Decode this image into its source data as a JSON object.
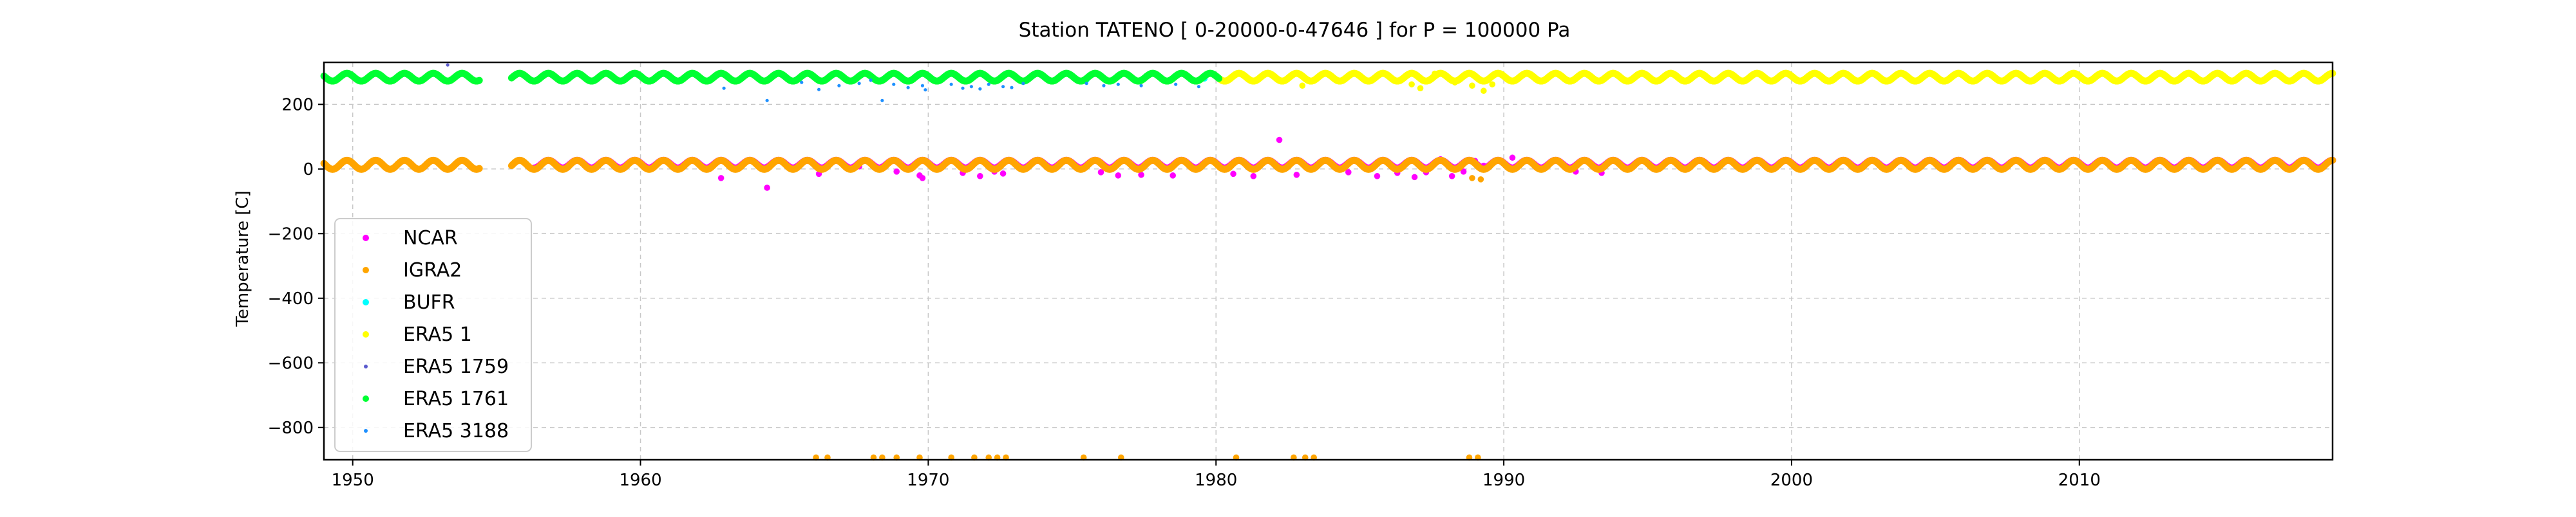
{
  "chart_data": {
    "type": "scatter",
    "title": "Station  TATENO [ 0-20000-0-47646 ]  for P = 100000 Pa",
    "xlabel": "",
    "ylabel": "Temperature [C]",
    "xlim": [
      1949.0,
      2018.8
    ],
    "ylim": [
      -900,
      330
    ],
    "x_ticks": [
      1950,
      1960,
      1970,
      1980,
      1990,
      2000,
      2010
    ],
    "x_tick_labels": [
      "1950",
      "1960",
      "1970",
      "1980",
      "1990",
      "2000",
      "2010"
    ],
    "y_ticks": [
      200,
      0,
      -200,
      -400,
      -600,
      -800
    ],
    "y_tick_labels": [
      "200",
      "0",
      "−200",
      "−400",
      "−600",
      "−800"
    ],
    "grid": true,
    "legend_position": "lower left",
    "series": [
      {
        "name": "NCAR",
        "color": "#ff00ff",
        "marker_size": "medium",
        "seasonal_band": {
          "x_start": 1956.3,
          "x_end": 2018.8,
          "center": 15,
          "amplitude": 12
        },
        "points": [
          [
            1962.8,
            -28
          ],
          [
            1964.4,
            -58
          ],
          [
            1966.2,
            -15
          ],
          [
            1967.6,
            8
          ],
          [
            1968.9,
            -8
          ],
          [
            1969.7,
            -20
          ],
          [
            1969.8,
            -28
          ],
          [
            1971.2,
            -12
          ],
          [
            1971.8,
            -22
          ],
          [
            1972.3,
            -8
          ],
          [
            1972.6,
            -14
          ],
          [
            1976.0,
            -10
          ],
          [
            1976.6,
            -20
          ],
          [
            1977.4,
            -18
          ],
          [
            1978.5,
            -20
          ],
          [
            1980.6,
            -15
          ],
          [
            1981.3,
            -22
          ],
          [
            1982.2,
            90
          ],
          [
            1982.8,
            -18
          ],
          [
            1984.6,
            -10
          ],
          [
            1985.6,
            -22
          ],
          [
            1986.3,
            -12
          ],
          [
            1986.9,
            -25
          ],
          [
            1987.3,
            -10
          ],
          [
            1987.8,
            30
          ],
          [
            1988.2,
            -22
          ],
          [
            1988.6,
            -8
          ],
          [
            1989.0,
            25
          ],
          [
            1989.3,
            10
          ],
          [
            1990.3,
            35
          ],
          [
            1992.5,
            -8
          ],
          [
            1993.4,
            -12
          ],
          [
            2016.4,
            2
          ]
        ]
      },
      {
        "name": "IGRA2",
        "color": "#ffa500",
        "marker_size": "medium",
        "seasonal_band": {
          "x_start": 1949.0,
          "x_end": 2018.8,
          "center": 13,
          "amplitude": 14
        },
        "gaps": [
          [
            1954.4,
            1955.5
          ]
        ],
        "points": [
          [
            1966.1,
            -893
          ],
          [
            1966.5,
            -893
          ],
          [
            1968.1,
            -893
          ],
          [
            1968.4,
            -893
          ],
          [
            1968.9,
            -893
          ],
          [
            1969.7,
            -893
          ],
          [
            1970.8,
            -893
          ],
          [
            1971.6,
            -893
          ],
          [
            1972.1,
            -893
          ],
          [
            1972.4,
            -893
          ],
          [
            1972.7,
            -893
          ],
          [
            1975.4,
            -893
          ],
          [
            1976.7,
            -893
          ],
          [
            1980.7,
            -893
          ],
          [
            1982.7,
            -893
          ],
          [
            1983.1,
            -893
          ],
          [
            1983.4,
            -893
          ],
          [
            1988.8,
            -893
          ],
          [
            1989.1,
            -893
          ],
          [
            1988.9,
            -28
          ],
          [
            1989.2,
            -32
          ]
        ]
      },
      {
        "name": "BUFR",
        "color": "#00ffff",
        "marker_size": "medium",
        "points": [
          [
            1975.5,
            276
          ],
          [
            1979.6,
            280
          ]
        ]
      },
      {
        "name": "ERA5 1",
        "color": "#ffff00",
        "marker_size": "medium",
        "seasonal_band": {
          "x_start": 1980.0,
          "x_end": 2018.8,
          "center": 284,
          "amplitude": 12
        },
        "points": [
          [
            1986.8,
            262
          ],
          [
            1987.1,
            250
          ],
          [
            1988.3,
            268
          ],
          [
            1988.9,
            258
          ],
          [
            1989.3,
            242
          ],
          [
            1989.6,
            262
          ],
          [
            1983.0,
            258
          ],
          [
            1987.6,
            295
          ]
        ]
      },
      {
        "name": "ERA5 1759",
        "color": "#5a5acd",
        "marker_size": "small",
        "seasonal_band": {
          "x_start": 1963.1,
          "x_end": 1964.4,
          "center": 284,
          "amplitude": 12
        },
        "points": [
          [
            1953.3,
            322
          ]
        ]
      },
      {
        "name": "ERA5 1761",
        "color": "#00ff33",
        "marker_size": "medium",
        "seasonal_band": {
          "x_start": 1949.0,
          "x_end": 1980.1,
          "center": 284,
          "amplitude": 12
        },
        "gaps": [
          [
            1954.4,
            1955.5
          ]
        ]
      },
      {
        "name": "ERA5 3188",
        "color": "#1e90ff",
        "marker_size": "small",
        "points": [
          [
            1962.9,
            250
          ],
          [
            1964.4,
            212
          ],
          [
            1965.6,
            268
          ],
          [
            1966.2,
            246
          ],
          [
            1966.9,
            258
          ],
          [
            1967.6,
            265
          ],
          [
            1968.0,
            275
          ],
          [
            1968.4,
            212
          ],
          [
            1968.8,
            262
          ],
          [
            1969.3,
            252
          ],
          [
            1969.8,
            258
          ],
          [
            1969.9,
            245
          ],
          [
            1970.8,
            262
          ],
          [
            1971.2,
            250
          ],
          [
            1971.5,
            255
          ],
          [
            1971.8,
            248
          ],
          [
            1972.1,
            262
          ],
          [
            1972.6,
            255
          ],
          [
            1972.9,
            252
          ],
          [
            1973.3,
            265
          ],
          [
            1975.5,
            265
          ],
          [
            1976.1,
            258
          ],
          [
            1976.6,
            262
          ],
          [
            1977.4,
            258
          ],
          [
            1978.6,
            262
          ],
          [
            1979.4,
            255
          ]
        ]
      }
    ]
  }
}
